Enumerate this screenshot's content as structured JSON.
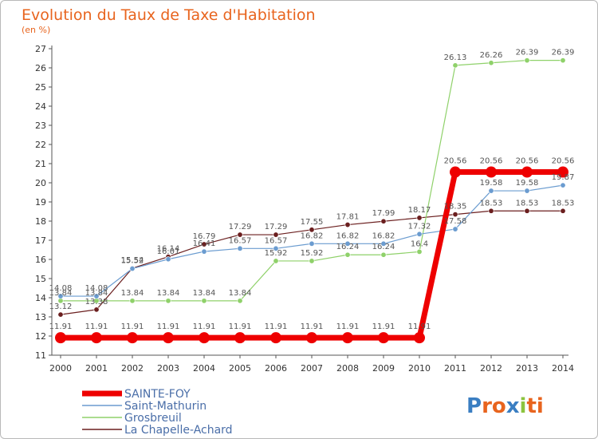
{
  "chart_data": {
    "type": "line",
    "title": "Evolution du Taux de Taxe d'Habitation",
    "subtitle": "(en %)",
    "x": [
      "2000",
      "2001",
      "2002",
      "2003",
      "2004",
      "2005",
      "2006",
      "2007",
      "2008",
      "2009",
      "2010",
      "2011",
      "2012",
      "2013",
      "2014"
    ],
    "ylim": [
      11,
      27
    ],
    "yticks": [
      11,
      12,
      13,
      14,
      15,
      16,
      17,
      18,
      19,
      20,
      21,
      22,
      23,
      24,
      25,
      26,
      27
    ],
    "grid": false,
    "legend_position": "bottom-left",
    "series": [
      {
        "name": "SAINTE-FOY",
        "color": "#ee0000",
        "values": [
          11.91,
          11.91,
          11.91,
          11.91,
          11.91,
          11.91,
          11.91,
          11.91,
          11.91,
          11.91,
          11.91,
          20.56,
          20.56,
          20.56,
          20.56
        ],
        "labels": [
          "11.91",
          "11.91",
          "11.91",
          "11.91",
          "11.91",
          "11.91",
          "11.91",
          "11.91",
          "11.91",
          "11.91",
          "11.91",
          "20.56",
          "20.56",
          "20.56",
          "20.56"
        ]
      },
      {
        "name": "Saint-Mathurin",
        "color": "#6b9cd0",
        "values": [
          14.08,
          14.08,
          15.52,
          16.01,
          16.41,
          16.57,
          16.57,
          16.82,
          16.82,
          16.82,
          17.32,
          17.58,
          19.58,
          19.58,
          19.87
        ],
        "labels": [
          "14.08",
          "14.08",
          "15.52",
          "16.01",
          "16.41",
          "16.57",
          "16.57",
          "16.82",
          "16.82",
          "16.82",
          "17.32",
          "17.58",
          "19.58",
          "19.58",
          "19.87"
        ]
      },
      {
        "name": "Grosbreuil",
        "color": "#8fd16a",
        "values": [
          13.84,
          13.84,
          13.84,
          13.84,
          13.84,
          13.84,
          15.92,
          15.92,
          16.24,
          16.24,
          16.4,
          26.13,
          26.26,
          26.39,
          26.39
        ],
        "labels": [
          "13.84",
          "13.84",
          "13.84",
          "13.84",
          "13.84",
          "13.84",
          "15.92",
          "15.92",
          "16.24",
          "16.24",
          "16.4",
          "26.13",
          "26.26",
          "26.39",
          "26.39"
        ]
      },
      {
        "name": "La Chapelle-Achard",
        "color": "#6b1f1f",
        "values": [
          13.12,
          13.38,
          15.54,
          16.14,
          16.79,
          17.29,
          17.29,
          17.55,
          17.81,
          17.99,
          18.17,
          18.35,
          18.53,
          18.53,
          18.53
        ],
        "labels": [
          "13.12",
          "13.38",
          "15.54",
          "16.14",
          "16.79",
          "17.29",
          "17.29",
          "17.55",
          "17.81",
          "17.99",
          "18.17",
          "18.35",
          "18.53",
          "18.53",
          "18.53"
        ]
      }
    ]
  },
  "logo": {
    "text": "Proxiti"
  }
}
